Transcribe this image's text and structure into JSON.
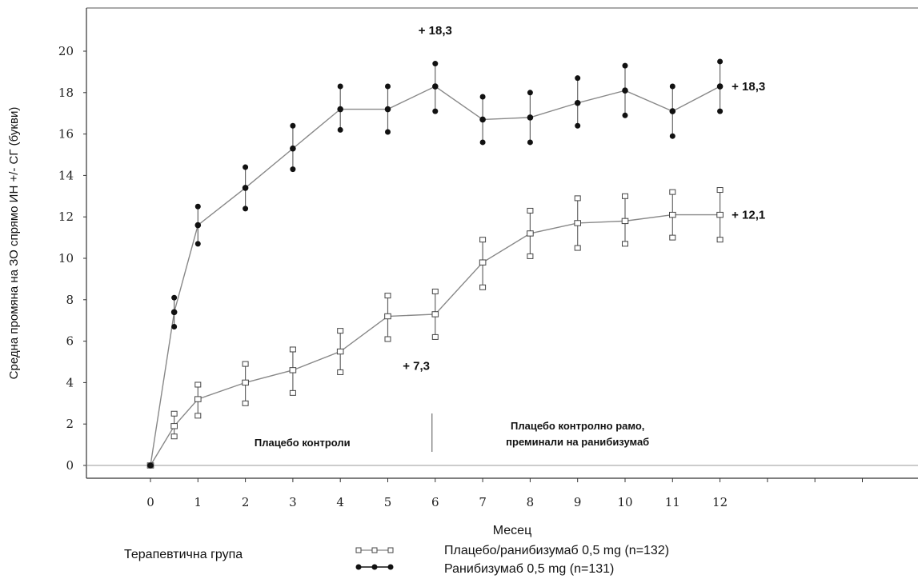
{
  "chart_data": {
    "type": "line",
    "xlabel": "Месец",
    "ylabel": "Средна промяна на ЗО спрямо ИН +/- СГ (букви)",
    "xlim": [
      -1,
      16
    ],
    "ylim": [
      -0.5,
      22
    ],
    "x_ticks": [
      0,
      1,
      2,
      3,
      4,
      5,
      6,
      7,
      8,
      9,
      10,
      11,
      12
    ],
    "y_ticks": [
      0,
      2,
      4,
      6,
      8,
      10,
      12,
      14,
      16,
      18,
      20
    ],
    "grid": false,
    "legend_title": "Терапевтична група",
    "legend_position": "bottom",
    "series": [
      {
        "name": "Плацебо/ранибизумаб 0,5 mg (n=132)",
        "marker": "square-open",
        "points": [
          {
            "x": 0,
            "y": 0,
            "lo": 0,
            "hi": 0
          },
          {
            "x": 0.5,
            "y": 1.9,
            "lo": 1.4,
            "hi": 2.5
          },
          {
            "x": 1,
            "y": 3.2,
            "lo": 2.4,
            "hi": 3.9
          },
          {
            "x": 2,
            "y": 4.0,
            "lo": 3.0,
            "hi": 4.9
          },
          {
            "x": 3,
            "y": 4.6,
            "lo": 3.5,
            "hi": 5.6
          },
          {
            "x": 4,
            "y": 5.5,
            "lo": 4.5,
            "hi": 6.5
          },
          {
            "x": 5,
            "y": 7.2,
            "lo": 6.1,
            "hi": 8.2
          },
          {
            "x": 6,
            "y": 7.3,
            "lo": 6.2,
            "hi": 8.4
          },
          {
            "x": 7,
            "y": 9.8,
            "lo": 8.6,
            "hi": 10.9
          },
          {
            "x": 8,
            "y": 11.2,
            "lo": 10.1,
            "hi": 12.3
          },
          {
            "x": 9,
            "y": 11.7,
            "lo": 10.5,
            "hi": 12.9
          },
          {
            "x": 10,
            "y": 11.8,
            "lo": 10.7,
            "hi": 13.0
          },
          {
            "x": 11,
            "y": 12.1,
            "lo": 11.0,
            "hi": 13.2
          },
          {
            "x": 12,
            "y": 12.1,
            "lo": 10.9,
            "hi": 13.3
          }
        ]
      },
      {
        "name": "Ранибизумаб 0,5 mg (n=131)",
        "marker": "circle-filled",
        "points": [
          {
            "x": 0,
            "y": 0,
            "lo": 0,
            "hi": 0
          },
          {
            "x": 0.5,
            "y": 7.4,
            "lo": 6.7,
            "hi": 8.1
          },
          {
            "x": 1,
            "y": 11.6,
            "lo": 10.7,
            "hi": 12.5
          },
          {
            "x": 2,
            "y": 13.4,
            "lo": 12.4,
            "hi": 14.4
          },
          {
            "x": 3,
            "y": 15.3,
            "lo": 14.3,
            "hi": 16.4
          },
          {
            "x": 4,
            "y": 17.2,
            "lo": 16.2,
            "hi": 18.3
          },
          {
            "x": 5,
            "y": 17.2,
            "lo": 16.1,
            "hi": 18.3
          },
          {
            "x": 6,
            "y": 18.3,
            "lo": 17.1,
            "hi": 19.4
          },
          {
            "x": 7,
            "y": 16.7,
            "lo": 15.6,
            "hi": 17.8
          },
          {
            "x": 8,
            "y": 16.8,
            "lo": 15.6,
            "hi": 18.0
          },
          {
            "x": 9,
            "y": 17.5,
            "lo": 16.4,
            "hi": 18.7
          },
          {
            "x": 10,
            "y": 18.1,
            "lo": 16.9,
            "hi": 19.3
          },
          {
            "x": 11,
            "y": 17.1,
            "lo": 15.9,
            "hi": 18.3
          },
          {
            "x": 12,
            "y": 18.3,
            "lo": 17.1,
            "hi": 19.5
          }
        ]
      }
    ],
    "annotations": [
      {
        "text": "+ 18,3",
        "x": 6,
        "y": 21.0
      },
      {
        "text": "+ 18,3",
        "x": 12.6,
        "y": 18.3
      },
      {
        "text": "+ 12,1",
        "x": 12.6,
        "y": 12.1
      },
      {
        "text": "+ 7,3",
        "x": 5.6,
        "y": 4.8
      }
    ],
    "regions": [
      {
        "label": "Плацебо контроли",
        "x_center": 3.2,
        "y": 1.2
      },
      {
        "label_lines": [
          "Плацебо контролно рамо,",
          "преминали на ранибизумаб"
        ],
        "x_center": 9.0,
        "y": 1.2
      }
    ],
    "divider_x": 6,
    "colors": {
      "line": "#888888",
      "axis": "#333333",
      "marker": "#111111"
    }
  }
}
